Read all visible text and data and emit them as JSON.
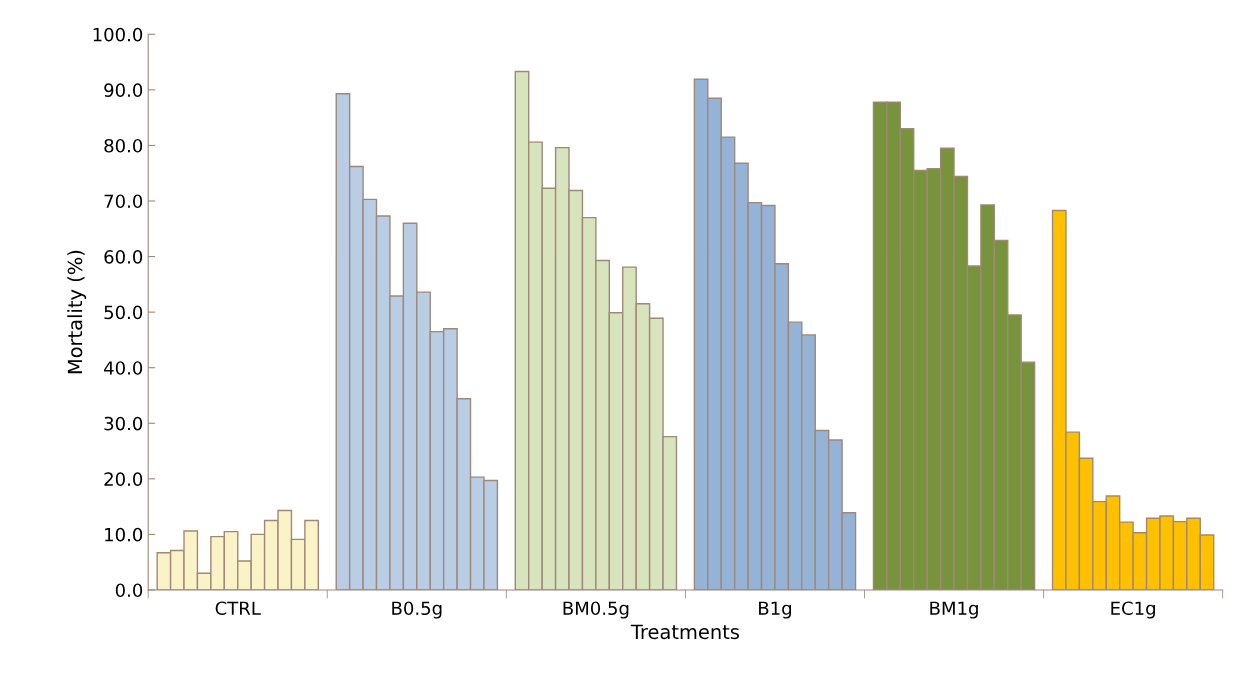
{
  "chart_data": {
    "type": "bar",
    "xlabel": "Treatments",
    "ylabel": "Mortality (%)",
    "categories": [
      "CTRL",
      "B0.5g",
      "BM0.5g",
      "B1g",
      "BM1g",
      "EC1g"
    ],
    "series": [
      {
        "colors": [
          "#fbf3c8",
          "#b9cde5",
          "#d7e4bd",
          "#95b3d7",
          "#77933c",
          "#ffc000"
        ],
        "values": [
          6.7,
          89.3,
          93.3,
          91.9,
          87.8,
          68.3
        ]
      },
      {
        "colors": [
          "#fbf3c8",
          "#b9cde5",
          "#d7e4bd",
          "#95b3d7",
          "#77933c",
          "#ffc000"
        ],
        "values": [
          7.1,
          76.2,
          80.6,
          88.5,
          87.8,
          28.4
        ]
      },
      {
        "colors": [
          "#fbf3c8",
          "#b9cde5",
          "#d7e4bd",
          "#95b3d7",
          "#77933c",
          "#ffc000"
        ],
        "values": [
          10.6,
          70.3,
          72.3,
          81.5,
          83.0,
          23.7
        ]
      },
      {
        "colors": [
          "#fbf3c8",
          "#b9cde5",
          "#d7e4bd",
          "#95b3d7",
          "#77933c",
          "#ffc000"
        ],
        "values": [
          3.0,
          67.3,
          79.6,
          76.8,
          75.5,
          15.9
        ]
      },
      {
        "colors": [
          "#fbf3c8",
          "#b9cde5",
          "#d7e4bd",
          "#95b3d7",
          "#77933c",
          "#ffc000"
        ],
        "values": [
          9.6,
          52.9,
          71.9,
          69.7,
          75.8,
          16.9
        ]
      },
      {
        "colors": [
          "#fbf3c8",
          "#b9cde5",
          "#d7e4bd",
          "#95b3d7",
          "#77933c",
          "#ffc000"
        ],
        "values": [
          10.5,
          66.0,
          67.0,
          69.2,
          79.5,
          12.2
        ]
      },
      {
        "colors": [
          "#fbf3c8",
          "#b9cde5",
          "#d7e4bd",
          "#95b3d7",
          "#77933c",
          "#ffc000"
        ],
        "values": [
          5.2,
          53.6,
          59.3,
          58.7,
          74.4,
          10.3
        ]
      },
      {
        "colors": [
          "#fbf3c8",
          "#b9cde5",
          "#d7e4bd",
          "#95b3d7",
          "#77933c",
          "#ffc000"
        ],
        "values": [
          10.0,
          46.5,
          49.9,
          48.2,
          58.3,
          12.9
        ]
      },
      {
        "colors": [
          "#fbf3c8",
          "#b9cde5",
          "#d7e4bd",
          "#95b3d7",
          "#77933c",
          "#ffc000"
        ],
        "values": [
          12.5,
          47.0,
          58.1,
          45.9,
          69.3,
          13.3
        ]
      },
      {
        "colors": [
          "#fbf3c8",
          "#b9cde5",
          "#d7e4bd",
          "#95b3d7",
          "#77933c",
          "#ffc000"
        ],
        "values": [
          14.3,
          34.4,
          51.5,
          28.7,
          62.9,
          12.3
        ]
      },
      {
        "colors": [
          "#fbf3c8",
          "#b9cde5",
          "#d7e4bd",
          "#95b3d7",
          "#77933c",
          "#ffc000"
        ],
        "values": [
          9.1,
          20.3,
          48.9,
          27.0,
          49.5,
          12.9
        ]
      },
      {
        "colors": [
          "#fbf3c8",
          "#b9cde5",
          "#d7e4bd",
          "#95b3d7",
          "#77933c",
          "#ffc000"
        ],
        "values": [
          12.5,
          19.7,
          27.6,
          13.9,
          41.0,
          9.9
        ]
      }
    ],
    "ylim": [
      0,
      100
    ],
    "yticks": [
      {
        "value": 0,
        "label": "0.0"
      },
      {
        "value": 10,
        "label": "10.0"
      },
      {
        "value": 20,
        "label": "20.0"
      },
      {
        "value": 30,
        "label": "30.0"
      },
      {
        "value": 40,
        "label": "40.0"
      },
      {
        "value": 50,
        "label": "50.0"
      },
      {
        "value": 60,
        "label": "60.0"
      },
      {
        "value": 70,
        "label": "70.0"
      },
      {
        "value": 80,
        "label": "80.0"
      },
      {
        "value": 90,
        "label": "90.0"
      },
      {
        "value": 100,
        "label": "100.0"
      }
    ],
    "grid": false
  }
}
